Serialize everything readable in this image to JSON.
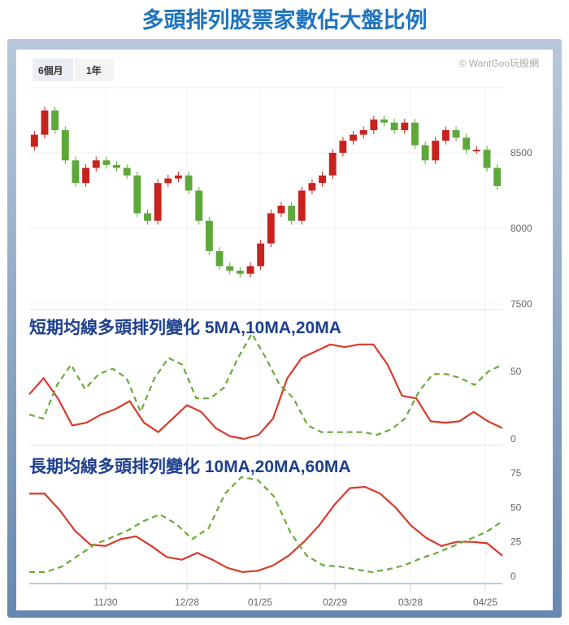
{
  "title": "多頭排列股票家數佔大盤比例",
  "range_buttons": [
    "6個月",
    "1年"
  ],
  "watermark": "© WantGoo玩股網",
  "colors": {
    "up": "#c8231e",
    "down": "#5ea83a",
    "red_line": "#d83a2a",
    "green_line": "#6aaa3a",
    "title": "#1e73be",
    "panel_title": "#1d3f8c"
  },
  "x_ticks": [
    "11/30",
    "12/28",
    "01/25",
    "02/29",
    "03/28",
    "04/25"
  ],
  "chart_data": [
    {
      "type": "candlestick",
      "y_ticks": [
        "8500",
        "8000",
        "7500"
      ],
      "ylim": [
        7450,
        8950
      ],
      "closes": [
        8620,
        8780,
        8650,
        8450,
        8300,
        8400,
        8450,
        8420,
        8400,
        8350,
        8100,
        8050,
        8300,
        8330,
        8350,
        8250,
        8050,
        7850,
        7750,
        7720,
        7700,
        7750,
        7900,
        8100,
        8150,
        8050,
        8250,
        8300,
        8350,
        8500,
        8580,
        8620,
        8650,
        8720,
        8700,
        8650,
        8700,
        8550,
        8450,
        8580,
        8650,
        8600,
        8520,
        8520,
        8400,
        8280
      ],
      "grid": true
    },
    {
      "type": "line",
      "title": "短期均線多頭排列變化 5MA,10MA,20MA",
      "y_ticks": [
        "50",
        "0"
      ],
      "ylim": [
        0,
        80
      ],
      "series": [
        {
          "style": "solid",
          "color": "#d83a2a",
          "values": [
            33,
            45,
            30,
            10,
            12,
            18,
            22,
            28,
            12,
            5,
            15,
            25,
            20,
            8,
            2,
            0,
            3,
            15,
            45,
            60,
            65,
            70,
            68,
            70,
            70,
            55,
            32,
            30,
            13,
            12,
            13,
            20,
            13,
            8
          ]
        },
        {
          "style": "dashed",
          "color": "#6aaa3a",
          "values": [
            18,
            15,
            40,
            55,
            37,
            48,
            52,
            45,
            20,
            45,
            60,
            55,
            30,
            30,
            38,
            60,
            78,
            60,
            40,
            30,
            10,
            5,
            5,
            5,
            5,
            3,
            7,
            15,
            35,
            48,
            48,
            45,
            40,
            50,
            55
          ]
        }
      ]
    },
    {
      "type": "line",
      "title": "長期均線多頭排列變化 10MA,20MA,60MA",
      "y_ticks": [
        "75",
        "50",
        "25",
        "0"
      ],
      "ylim": [
        0,
        75
      ],
      "series": [
        {
          "style": "solid",
          "color": "#d83a2a",
          "values": [
            60,
            60,
            48,
            33,
            23,
            22,
            27,
            29,
            22,
            14,
            12,
            17,
            12,
            6,
            3,
            4,
            8,
            15,
            25,
            37,
            52,
            64,
            65,
            60,
            50,
            37,
            28,
            22,
            25,
            25,
            24,
            15
          ]
        },
        {
          "style": "dashed",
          "color": "#6aaa3a",
          "values": [
            3,
            3,
            7,
            15,
            23,
            28,
            33,
            40,
            45,
            38,
            27,
            35,
            60,
            72,
            70,
            58,
            32,
            15,
            8,
            7,
            5,
            3,
            5,
            8,
            13,
            17,
            22,
            27,
            32,
            40
          ]
        }
      ]
    }
  ]
}
